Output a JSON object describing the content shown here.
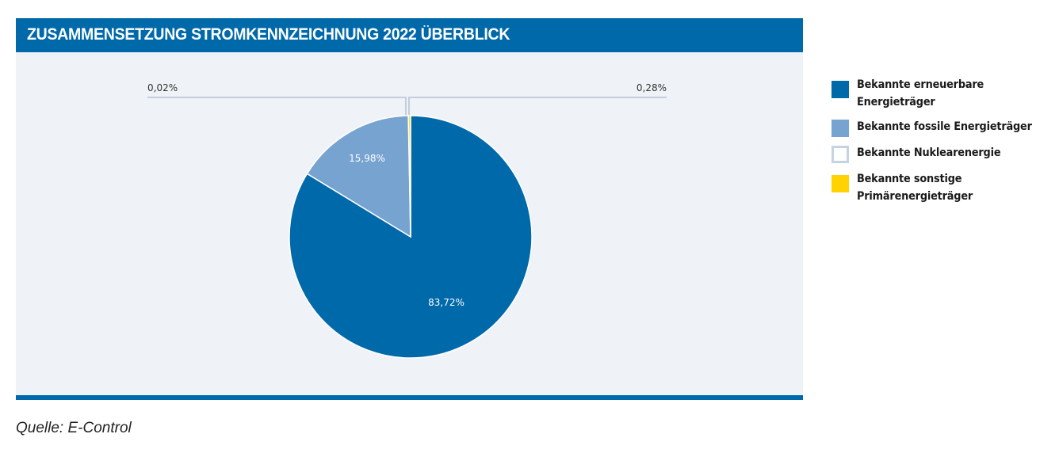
{
  "header": {
    "title": "ZUSAMMENSETZUNG STROMKENNZEICHNUNG 2022 ÜBERBLICK"
  },
  "colors": {
    "brand_blue": "#0069aa",
    "renewable": "#0069aa",
    "fossil": "#76a3cf",
    "nuclear": "#ffffff",
    "nuclear_border": "#c5d3e3",
    "other": "#ffd200",
    "panel_bg": "#eff3f8",
    "leader_line": "#c5ccdb"
  },
  "labels": {
    "renewable_pct": "83,72%",
    "fossil_pct": "15,98%",
    "nuclear_pct": "0,02%",
    "other_pct": "0,28%"
  },
  "legend": {
    "items": [
      {
        "label_line1": "Bekannte erneuerbare",
        "label_line2": "Energieträger",
        "color": "#0069aa"
      },
      {
        "label_line1": "Bekannte fossile Energieträger",
        "label_line2": "",
        "color": "#76a3cf"
      },
      {
        "label_line1": "Bekannte Nuklearenergie",
        "label_line2": "",
        "color": "#ffffff"
      },
      {
        "label_line1": "Bekannte sonstige",
        "label_line2": "Primärenergieträger",
        "color": "#ffd200"
      }
    ]
  },
  "source": {
    "text": "Quelle: E-Control"
  },
  "chart_data": {
    "type": "pie",
    "title": "ZUSAMMENSETZUNG STROMKENNZEICHNUNG 2022 ÜBERBLICK",
    "categories": [
      "Bekannte erneuerbare Energieträger",
      "Bekannte fossile Energieträger",
      "Bekannte Nuklearenergie",
      "Bekannte sonstige Primärenergieträger"
    ],
    "values": [
      83.72,
      15.98,
      0.02,
      0.28
    ],
    "unit": "%",
    "data_labels": [
      "83,72%",
      "15,98%",
      "0,02%",
      "0,28%"
    ],
    "colors": [
      "#0069aa",
      "#76a3cf",
      "#ffffff",
      "#ffd200"
    ],
    "legend_position": "right",
    "source": "Quelle: E-Control"
  }
}
